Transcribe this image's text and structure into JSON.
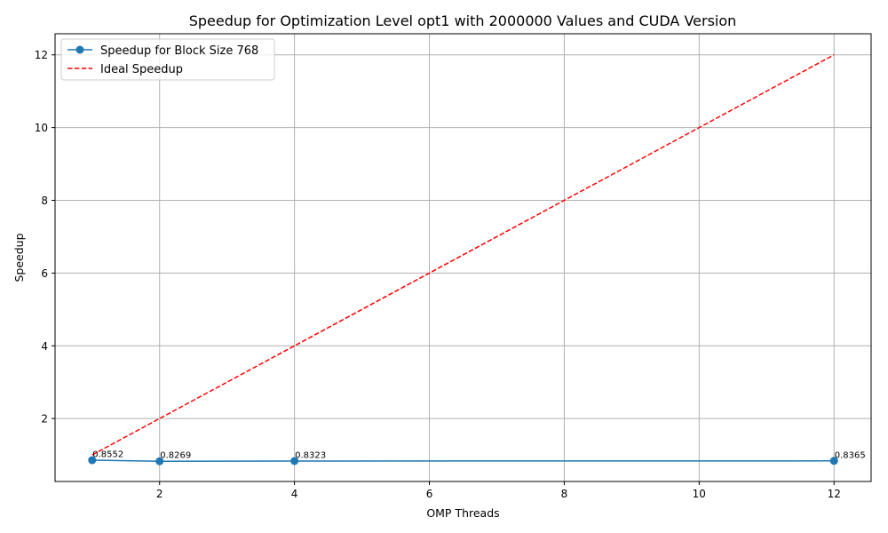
{
  "chart_data": {
    "type": "line",
    "title": "Speedup for Optimization Level opt1 with 2000000 Values and CUDA Version",
    "xlabel": "OMP Threads",
    "ylabel": "Speedup",
    "xlim": [
      0.45,
      12.55
    ],
    "ylim": [
      0.27,
      12.58
    ],
    "xticks": [
      2,
      4,
      6,
      8,
      10,
      12
    ],
    "yticks": [
      2,
      4,
      6,
      8,
      10,
      12
    ],
    "grid": true,
    "legend_position": "top-left",
    "series": [
      {
        "name": "Speedup for Block Size 768",
        "style": "solid-marker",
        "color": "#1f77b4",
        "x": [
          1,
          2,
          4,
          12
        ],
        "y": [
          0.8552,
          0.8269,
          0.8323,
          0.8365
        ],
        "labels": [
          "0.8552",
          "0.8269",
          "0.8323",
          "0.8365"
        ]
      },
      {
        "name": "Ideal Speedup",
        "style": "dashed",
        "color": "#ff0000",
        "x": [
          1,
          12
        ],
        "y": [
          1,
          12
        ]
      }
    ]
  }
}
